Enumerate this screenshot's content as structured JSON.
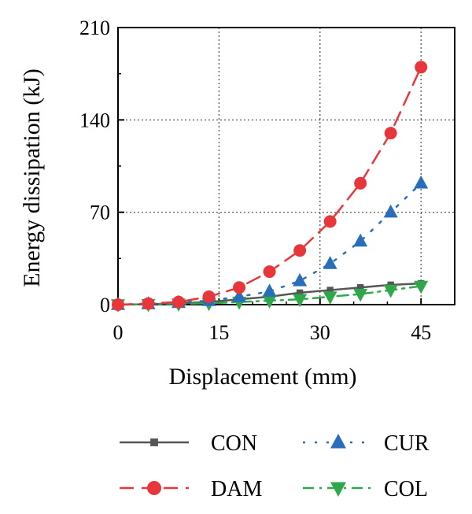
{
  "chart_data": {
    "type": "line",
    "xlabel": "Displacement (mm)",
    "ylabel": "Energy dissipation (kJ)",
    "xlim": [
      0,
      50
    ],
    "ylim": [
      0,
      210
    ],
    "xticks": [
      0,
      15,
      30,
      45
    ],
    "yticks": [
      0,
      70,
      140,
      210
    ],
    "grid": true,
    "legend_position": "bottom",
    "x": [
      0,
      4.5,
      9,
      13.5,
      18,
      22.5,
      27,
      31.5,
      36,
      40.5,
      45
    ],
    "series": [
      {
        "name": "CON",
        "color": "#555555",
        "marker": "square",
        "line": "solid",
        "values": [
          0,
          0.3,
          1,
          2,
          4,
          6,
          9,
          11,
          13,
          15,
          16
        ]
      },
      {
        "name": "CUR",
        "color": "#2a6ebb",
        "marker": "triangle-up",
        "line": "dotted",
        "values": [
          0,
          0.5,
          1.5,
          3,
          6,
          10,
          18,
          31,
          48,
          70,
          92
        ]
      },
      {
        "name": "DAM",
        "color": "#e8373c",
        "marker": "circle",
        "line": "dashed",
        "values": [
          0,
          0.8,
          2,
          6,
          13,
          25,
          41,
          63,
          92,
          130,
          180
        ]
      },
      {
        "name": "COL",
        "color": "#2ea84b",
        "marker": "triangle-down",
        "line": "dashdot",
        "values": [
          0,
          0.2,
          0.5,
          1,
          2,
          3,
          4,
          6,
          8,
          11,
          14
        ]
      }
    ],
    "legend_order": [
      "CON",
      "CUR",
      "DAM",
      "COL"
    ]
  }
}
